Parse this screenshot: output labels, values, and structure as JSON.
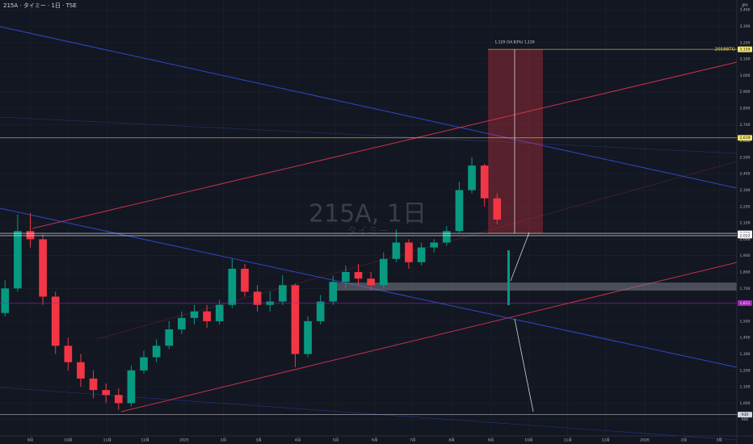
{
  "header": {
    "title": "215A · タイミー · 1日 · TSE",
    "currency": "JPY"
  },
  "watermark": {
    "symbol": "215A, 1日",
    "name": "タイミー"
  },
  "chart_data": {
    "type": "candlestick",
    "x": [
      -20,
      -10,
      0,
      10,
      20,
      30,
      40,
      50,
      60,
      70,
      80,
      90,
      100,
      110,
      120,
      130,
      140,
      150,
      160,
      170,
      180,
      190,
      200,
      210,
      220,
      230,
      240,
      250,
      260,
      270,
      280,
      290,
      300,
      310,
      320,
      330,
      340,
      350,
      360,
      370
    ],
    "open": [
      1550,
      1700,
      2050,
      2000,
      1650,
      1350,
      1250,
      1150,
      1080,
      1050,
      1000,
      1200,
      1280,
      1350,
      1450,
      1520,
      1560,
      1500,
      1600,
      1820,
      1680,
      1600,
      1620,
      1720,
      1300,
      1500,
      1620,
      1740,
      1800,
      1760,
      1720,
      1880,
      1980,
      1860,
      1950,
      1980,
      2050,
      2300,
      2450,
      2250
    ],
    "high": [
      1750,
      2150,
      2160,
      2030,
      1680,
      1400,
      1300,
      1200,
      1120,
      1090,
      1230,
      1320,
      1390,
      1500,
      1560,
      1600,
      1600,
      1630,
      1880,
      1850,
      1720,
      1680,
      1780,
      1730,
      1530,
      1660,
      1780,
      1840,
      1850,
      1800,
      1920,
      2060,
      2000,
      1980,
      2000,
      2080,
      2350,
      2500,
      2460,
      2280
    ],
    "low": [
      1530,
      1680,
      1950,
      1600,
      1300,
      1200,
      1100,
      1030,
      1000,
      960,
      980,
      1180,
      1250,
      1330,
      1420,
      1480,
      1460,
      1480,
      1580,
      1650,
      1560,
      1560,
      1600,
      1220,
      1280,
      1480,
      1600,
      1700,
      1720,
      1690,
      1700,
      1860,
      1820,
      1840,
      1920,
      1960,
      2040,
      2280,
      2200,
      2090
    ],
    "close": [
      1700,
      2050,
      2000,
      1650,
      1350,
      1250,
      1150,
      1080,
      1050,
      1000,
      1200,
      1280,
      1350,
      1450,
      1520,
      1560,
      1500,
      1600,
      1820,
      1680,
      1600,
      1620,
      1720,
      1300,
      1500,
      1620,
      1740,
      1800,
      1760,
      1720,
      1880,
      1980,
      1860,
      1950,
      1980,
      2050,
      2300,
      2450,
      2250,
      2120
    ],
    "up_color": "#089981",
    "down_color": "#f23645",
    "xlim": [
      -24,
      560
    ],
    "ylim": [
      800,
      3460
    ],
    "xticks": [
      {
        "value": 0,
        "label": "9月"
      },
      {
        "value": 30,
        "label": "10月"
      },
      {
        "value": 61,
        "label": "11月"
      },
      {
        "value": 91,
        "label": "12月"
      },
      {
        "value": 122,
        "label": "2025"
      },
      {
        "value": 153,
        "label": "2月"
      },
      {
        "value": 181,
        "label": "3月"
      },
      {
        "value": 212,
        "label": "4月"
      },
      {
        "value": 242,
        "label": "5月"
      },
      {
        "value": 273,
        "label": "6月"
      },
      {
        "value": 303,
        "label": "7月"
      },
      {
        "value": 334,
        "label": "8月"
      },
      {
        "value": 365,
        "label": "9月"
      },
      {
        "value": 395,
        "label": "10月"
      },
      {
        "value": 426,
        "label": "11月"
      },
      {
        "value": 456,
        "label": "12月"
      },
      {
        "value": 487,
        "label": "2026"
      },
      {
        "value": 518,
        "label": "2月"
      },
      {
        "value": 546,
        "label": "3月"
      }
    ],
    "yticks": [
      900,
      {
        "value": 1000,
        "label": "1,000"
      },
      {
        "value": 1100,
        "label": "1,100"
      },
      {
        "value": 1200,
        "label": "1,200"
      },
      {
        "value": 1300,
        "label": "1,300"
      },
      {
        "value": 1400,
        "label": "1,400"
      },
      {
        "value": 1500,
        "label": "1,500"
      },
      {
        "value": 1600,
        "label": "1,600"
      },
      {
        "value": 1700,
        "label": "1,700"
      },
      {
        "value": 1800,
        "label": "1,800"
      },
      {
        "value": 1900,
        "label": "1,900"
      },
      {
        "value": 2000,
        "label": "2,000"
      },
      {
        "value": 2100,
        "label": "2,100"
      },
      {
        "value": 2200,
        "label": "2,200"
      },
      {
        "value": 2300,
        "label": "2,300"
      },
      {
        "value": 2400,
        "label": "2,400"
      },
      {
        "value": 2500,
        "label": "2,500"
      },
      {
        "value": 2600,
        "label": "2,600"
      },
      {
        "value": 2700,
        "label": "2,700"
      },
      {
        "value": 2800,
        "label": "2,800"
      },
      {
        "value": 2900,
        "label": "2,900"
      },
      {
        "value": 3000,
        "label": "3,000"
      },
      {
        "value": 3100,
        "label": "3,100"
      },
      {
        "value": 3200,
        "label": "3,200"
      },
      {
        "value": 3300,
        "label": "3,300"
      },
      {
        "value": 3400,
        "label": "3,400"
      }
    ],
    "price_levels": [
      {
        "value": 3159,
        "label": "3,159",
        "name": "2058BTG",
        "color": "#f5e663"
      },
      {
        "value": 2619,
        "label": "2,619",
        "color": "#f5e663"
      },
      {
        "value": 2036,
        "label": "2,036",
        "color": "#ffffff"
      },
      {
        "value": 2022,
        "label": "2,022",
        "color": "#ffffff"
      },
      {
        "value": 1611,
        "label": "1,611",
        "color": "#9c27b0"
      },
      {
        "value": 930,
        "label": "930",
        "color": "#d1d4dc"
      }
    ],
    "measure": {
      "label": "1,129 (54.83%) 1,129"
    }
  }
}
